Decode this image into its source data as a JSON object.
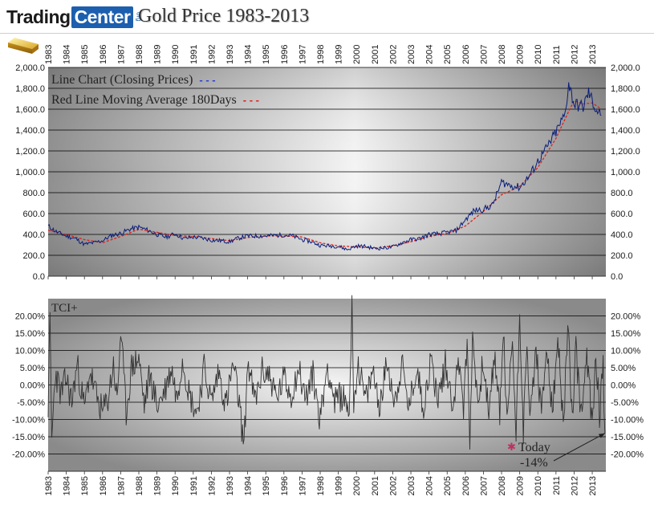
{
  "header": {
    "logo_trading": "Trading",
    "logo_center": "Center",
    "logo_org": "org",
    "title": "Gold Price 1983-2013"
  },
  "colors": {
    "price_line": "#0a1e7a",
    "moving_average": "#e0201a",
    "tci_line": "#333333",
    "today_marker": "#c03060"
  },
  "chart_data": [
    {
      "type": "line",
      "title": "",
      "legend": [
        {
          "name": "Line Chart (Closing Prices)",
          "marker": "- - -",
          "color": "#2b3fd6"
        },
        {
          "name": "Red Line Moving Average 180Days",
          "marker": "- - -",
          "color": "#e0201a"
        }
      ],
      "legend_position": "top-left",
      "grid": true,
      "ylim": [
        0,
        2000
      ],
      "yticks": [
        0,
        200,
        400,
        600,
        800,
        1000,
        1200,
        1400,
        1600,
        1800,
        2000
      ],
      "ytick_labels": [
        "0.0",
        "200.0",
        "400.0",
        "600.0",
        "800.0",
        "1,000.0",
        "1,200.0",
        "1,400.0",
        "1,600.0",
        "1,800.0",
        "2,000.0"
      ],
      "xlim": [
        1983,
        2013.75
      ],
      "x_tick_labels": [
        "1983",
        "1984",
        "1985",
        "1986",
        "1987",
        "1988",
        "1989",
        "1990",
        "1991",
        "1992",
        "1993",
        "1994",
        "1995",
        "1996",
        "1997",
        "1998",
        "1999",
        "2000",
        "2001",
        "2002",
        "2003",
        "2004",
        "2005",
        "2006",
        "2007",
        "2008",
        "2009",
        "2010",
        "2011",
        "2012",
        "2013"
      ],
      "series": [
        {
          "name": "Line Chart (Closing Prices)",
          "x": [
            1983.0,
            1983.5,
            1984.0,
            1984.5,
            1985.0,
            1985.5,
            1986.0,
            1986.5,
            1987.0,
            1987.5,
            1988.0,
            1988.5,
            1989.0,
            1989.5,
            1990.0,
            1990.5,
            1991.0,
            1991.5,
            1992.0,
            1992.5,
            1993.0,
            1993.5,
            1994.0,
            1994.5,
            1995.0,
            1995.5,
            1996.0,
            1996.5,
            1997.0,
            1997.5,
            1998.0,
            1998.5,
            1999.0,
            1999.5,
            2000.0,
            2000.5,
            2001.0,
            2001.5,
            2002.0,
            2002.5,
            2003.0,
            2003.5,
            2004.0,
            2004.5,
            2005.0,
            2005.5,
            2006.0,
            2006.5,
            2007.0,
            2007.5,
            2008.0,
            2008.5,
            2009.0,
            2009.5,
            2010.0,
            2010.5,
            2011.0,
            2011.5,
            2011.7,
            2012.0,
            2012.5,
            2012.8,
            2013.0,
            2013.2,
            2013.5
          ],
          "values": [
            480,
            420,
            385,
            360,
            305,
            320,
            340,
            390,
            410,
            450,
            470,
            440,
            400,
            375,
            405,
            360,
            375,
            365,
            345,
            340,
            330,
            365,
            385,
            385,
            385,
            390,
            395,
            385,
            350,
            330,
            295,
            290,
            285,
            255,
            290,
            285,
            265,
            270,
            280,
            320,
            350,
            360,
            400,
            405,
            420,
            435,
            540,
            630,
            640,
            680,
            900,
            870,
            850,
            950,
            1100,
            1230,
            1380,
            1550,
            1850,
            1650,
            1620,
            1760,
            1680,
            1600,
            1540
          ]
        },
        {
          "name": "Red Line Moving Average 180Days",
          "x": [
            1983.0,
            1984.0,
            1985.0,
            1986.0,
            1987.0,
            1988.0,
            1989.0,
            1990.0,
            1991.0,
            1992.0,
            1993.0,
            1994.0,
            1995.0,
            1996.0,
            1997.0,
            1998.0,
            1999.0,
            2000.0,
            2001.0,
            2002.0,
            2003.0,
            2004.0,
            2005.0,
            2006.0,
            2007.0,
            2008.0,
            2009.0,
            2010.0,
            2011.0,
            2011.7,
            2012.0,
            2012.5,
            2013.0,
            2013.5
          ],
          "values": [
            440,
            400,
            350,
            320,
            380,
            450,
            420,
            390,
            380,
            360,
            340,
            370,
            385,
            385,
            375,
            320,
            290,
            280,
            270,
            290,
            330,
            380,
            410,
            480,
            620,
            780,
            860,
            1040,
            1320,
            1580,
            1680,
            1650,
            1660,
            1600
          ]
        }
      ]
    },
    {
      "type": "line",
      "title": "",
      "legend": [
        {
          "name": "TCI+"
        }
      ],
      "legend_position": "top-left",
      "grid": true,
      "ylim": [
        -25,
        25
      ],
      "yticks": [
        -20,
        -15,
        -10,
        -5,
        0,
        5,
        10,
        15,
        20
      ],
      "ytick_labels": [
        "-20.00%",
        "-15.00%",
        "-10.00%",
        "-5.00%",
        "0.00%",
        "5.00%",
        "10.00%",
        "15.00%",
        "20.00%"
      ],
      "xlim": [
        1983,
        2013.75
      ],
      "x_tick_labels": [
        "1983",
        "1984",
        "1985",
        "1986",
        "1987",
        "1988",
        "1989",
        "1990",
        "1991",
        "1992",
        "1993",
        "1994",
        "1995",
        "1996",
        "1997",
        "1998",
        "1999",
        "2000",
        "2001",
        "2002",
        "2003",
        "2004",
        "2005",
        "2006",
        "2007",
        "2008",
        "2009",
        "2010",
        "2011",
        "2012",
        "2013"
      ],
      "annotation": {
        "marker": "✱",
        "label": "Today",
        "value_label": "-14%",
        "value": -14,
        "x": 2013.7
      },
      "series": [
        {
          "name": "TCI+",
          "x": [
            1983.0,
            1983.1,
            1983.2,
            1983.4,
            1983.7,
            1984.0,
            1984.3,
            1984.6,
            1985.0,
            1985.3,
            1985.7,
            1986.0,
            1986.3,
            1986.6,
            1986.8,
            1987.0,
            1987.3,
            1987.6,
            1988.0,
            1988.3,
            1988.6,
            1989.0,
            1989.4,
            1989.8,
            1990.1,
            1990.4,
            1990.8,
            1991.2,
            1991.6,
            1992.0,
            1992.4,
            1992.8,
            1993.2,
            1993.5,
            1993.8,
            1994.0,
            1994.4,
            1994.8,
            1995.2,
            1995.6,
            1996.0,
            1996.4,
            1996.8,
            1997.2,
            1997.6,
            1998.0,
            1998.4,
            1998.8,
            1999.2,
            1999.6,
            1999.75,
            1999.85,
            2000.1,
            2000.5,
            2000.9,
            2001.3,
            2001.7,
            2002.1,
            2002.5,
            2002.9,
            2003.3,
            2003.7,
            2004.1,
            2004.5,
            2004.9,
            2005.3,
            2005.7,
            2005.9,
            2006.1,
            2006.25,
            2006.4,
            2006.7,
            2007.0,
            2007.3,
            2007.6,
            2007.9,
            2008.1,
            2008.3,
            2008.6,
            2008.8,
            2009.0,
            2009.2,
            2009.4,
            2009.6,
            2009.9,
            2010.2,
            2010.5,
            2010.8,
            2011.1,
            2011.4,
            2011.6,
            2011.7,
            2011.9,
            2012.1,
            2012.4,
            2012.7,
            2013.0,
            2013.2,
            2013.4,
            2013.6,
            2013.7
          ],
          "values": [
            -6,
            18,
            -16,
            4,
            -3,
            2,
            -5,
            6,
            -7,
            4,
            -4,
            -8,
            -4,
            6,
            -5,
            16,
            -8,
            5,
            8,
            -6,
            3,
            -6,
            -2,
            5,
            -4,
            8,
            -3,
            -8,
            5,
            -5,
            4,
            -6,
            6,
            -4,
            -18,
            7,
            -5,
            4,
            3,
            -4,
            2,
            -3,
            5,
            -4,
            3,
            -10,
            6,
            -5,
            -3,
            -7,
            22,
            -4,
            6,
            -5,
            4,
            -6,
            7,
            -5,
            6,
            -7,
            5,
            -6,
            7,
            -4,
            6,
            -5,
            8,
            -7,
            12,
            -18,
            15,
            -6,
            8,
            -10,
            9,
            -8,
            16,
            -12,
            14,
            -15,
            22,
            -13,
            10,
            -9,
            11,
            -10,
            12,
            -9,
            13,
            -11,
            9,
            17,
            -12,
            10,
            -9,
            8,
            -11,
            9,
            -8,
            5,
            -14
          ]
        }
      ]
    }
  ]
}
